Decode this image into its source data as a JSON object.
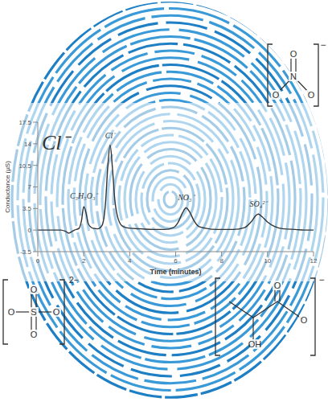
{
  "chart_data": {
    "type": "line",
    "featured_ion": "Cl⁻",
    "x_label": "Time (minutes)",
    "y_label": "Conductance (µS)",
    "x": [
      0,
      0.5,
      1.0,
      1.2,
      1.35,
      1.5,
      1.6,
      1.8,
      1.9,
      2.0,
      2.1,
      2.2,
      2.4,
      2.6,
      2.8,
      2.95,
      3.05,
      3.15,
      3.25,
      3.35,
      3.5,
      3.7,
      4.0,
      4.5,
      5.0,
      5.5,
      5.9,
      6.1,
      6.3,
      6.45,
      6.6,
      6.8,
      7.0,
      7.3,
      7.8,
      8.5,
      9.0,
      9.3,
      9.5,
      9.6,
      9.75,
      10.0,
      10.3,
      10.7,
      11.2,
      11.6,
      12
    ],
    "values": [
      0,
      0,
      0,
      -0.2,
      -0.5,
      -0.2,
      0,
      0.3,
      1.5,
      3.8,
      2.8,
      1.0,
      0.3,
      0.2,
      0.8,
      4.5,
      10.5,
      13.8,
      10.0,
      5.0,
      1.8,
      0.6,
      0.3,
      0.2,
      0.1,
      0.1,
      0.4,
      1.2,
      2.8,
      3.6,
      3.0,
      1.5,
      0.6,
      0.3,
      0.1,
      0.1,
      0.4,
      1.4,
      2.4,
      2.6,
      2.2,
      1.3,
      0.6,
      0.2,
      0.1,
      0,
      0
    ],
    "color": "#333333",
    "xlim": [
      0,
      12
    ],
    "xticks": [
      0,
      2,
      4,
      6,
      8,
      10,
      12
    ],
    "ylim": [
      -3.5,
      17.5
    ],
    "yticks": [
      -3.5,
      0,
      3.5,
      7,
      10.5,
      14,
      17.5
    ],
    "grid": false,
    "annotations": [
      {
        "text": "C₃H₅O₃⁻",
        "x": 2.0,
        "y": 5.6
      },
      {
        "text": "Cl⁻",
        "x": 3.15,
        "y": 15.3
      },
      {
        "text": "NO₃⁻",
        "x": 6.45,
        "y": 5.3
      },
      {
        "text": "SO₄²⁻",
        "x": 9.6,
        "y": 4.3
      }
    ],
    "structures": [
      {
        "atoms": [
          "O",
          "N",
          "O",
          "O"
        ],
        "charge": "−"
      },
      {
        "atoms": [
          "O",
          "S",
          "O",
          "O",
          "O"
        ],
        "charge": "2−"
      },
      {
        "atoms": [
          "O",
          "O",
          "OH"
        ],
        "charge": "−"
      }
    ]
  }
}
